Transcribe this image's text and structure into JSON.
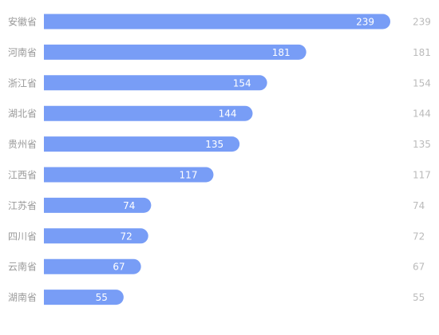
{
  "chart_data": {
    "type": "bar",
    "orientation": "horizontal",
    "categories": [
      "安徽省",
      "河南省",
      "浙江省",
      "湖北省",
      "贵州省",
      "江西省",
      "江苏省",
      "四川省",
      "云南省",
      "湖南省"
    ],
    "values": [
      239,
      181,
      154,
      144,
      135,
      117,
      74,
      72,
      67,
      55
    ],
    "color": "#789df6"
  }
}
